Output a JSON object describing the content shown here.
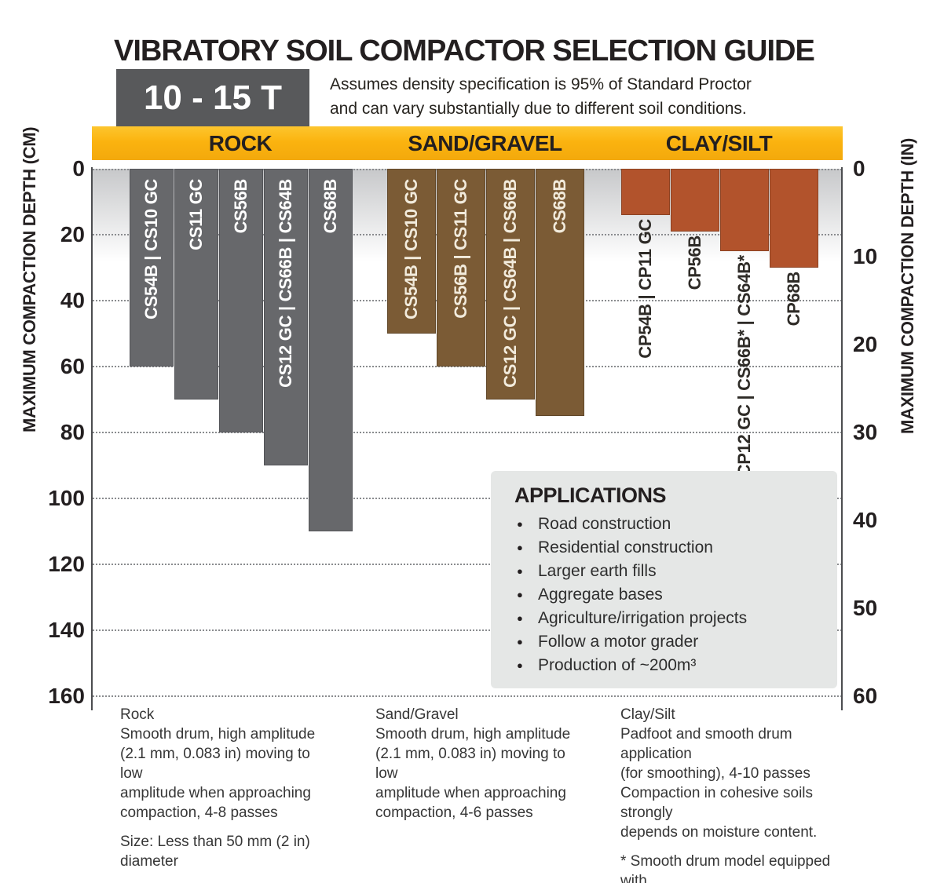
{
  "title": "VIBRATORY SOIL COMPACTOR SELECTION GUIDE",
  "badge": "10 - 15 T",
  "subtitle": {
    "line1": "Assumes density specification is 95% of Standard Proctor",
    "line2": "and can vary substantially due to different soil conditions."
  },
  "colors": {
    "band_yellow": "#FBB415",
    "badge_gray": "#58595B",
    "applications_box": "#E5E7E6",
    "gridline": "#8A8C8F",
    "axis_line": "#4C4D50",
    "plot_gradient_top": "#C7C8CA"
  },
  "axes": {
    "left_title": "MAXIMUM COMPACTION DEPTH (CM)",
    "right_title": "MAXIMUM COMPACTION DEPTH (IN)",
    "cm_ticks": [
      0,
      20,
      40,
      60,
      80,
      100,
      120,
      140,
      160
    ],
    "in_ticks": [
      0,
      10,
      20,
      30,
      40,
      50,
      60
    ],
    "cm_max": 160,
    "in_max": 60
  },
  "chart_data": {
    "type": "bar",
    "title": "VIBRATORY SOIL COMPACTOR SELECTION GUIDE",
    "orientation": "depth-bars-from-top",
    "ylabel_left": "MAXIMUM COMPACTION DEPTH (CM)",
    "ylabel_right": "MAXIMUM COMPACTION DEPTH (IN)",
    "ylim_cm": [
      0,
      160
    ],
    "ylim_in": [
      0,
      60
    ],
    "in_ticks_evenly_spaced_over_cm_range": true,
    "grid": "dotted horizontal every 20 cm",
    "groups": [
      {
        "category": "ROCK",
        "color": "#67686B",
        "edge_color": "#535458",
        "label_color": "#FFFFFF",
        "labels_outside": false,
        "bars": [
          {
            "model": "CS54B | CS10 GC",
            "depth_cm": 60
          },
          {
            "model": "CS11 GC",
            "depth_cm": 70
          },
          {
            "model": "CS56B",
            "depth_cm": 80
          },
          {
            "model": "CS12 GC  | CS66B | CS64B",
            "depth_cm": 90
          },
          {
            "model": "CS68B",
            "depth_cm": 110
          }
        ]
      },
      {
        "category": "SAND/GRAVEL",
        "color": "#7B5B35",
        "edge_color": "#61482A",
        "label_color": "#F2EBDC",
        "labels_outside": false,
        "bars": [
          {
            "model": "CS54B | CS10 GC",
            "depth_cm": 50
          },
          {
            "model": "CS56B | CS11 GC",
            "depth_cm": 60
          },
          {
            "model": "CS12 GC | CS64B | CS66B",
            "depth_cm": 70
          },
          {
            "model": "CS68B",
            "depth_cm": 75
          }
        ]
      },
      {
        "category": "CLAY/SILT",
        "color": "#B2532C",
        "edge_color": "#8C4222",
        "label_color": "#2E2B27",
        "labels_outside": true,
        "bars": [
          {
            "model": "CP54B | CP11 GC",
            "depth_cm": 14
          },
          {
            "model": "CP56B",
            "depth_cm": 19
          },
          {
            "model": "CP12 GC | CS66B* | CS64B*",
            "depth_cm": 25
          },
          {
            "model": "CP68B",
            "depth_cm": 30
          }
        ]
      }
    ]
  },
  "applications": {
    "title": "APPLICATIONS",
    "items": [
      "Road construction",
      "Residential construction",
      "Larger earth fills",
      "Aggregate bases",
      "Agriculture/irrigation projects",
      "Follow a motor grader",
      "Production of ~200m³"
    ]
  },
  "footnotes": [
    {
      "heading": "Rock",
      "paragraphs": [
        "Smooth drum, high amplitude\n(2.1 mm, 0.083 in) moving to low\namplitude when approaching\ncompaction, 4-8 passes",
        "Size: Less than 50 mm (2 in)\ndiameter"
      ]
    },
    {
      "heading": "Sand/Gravel",
      "paragraphs": [
        "Smooth drum, high amplitude\n(2.1 mm, 0.083 in) moving to low\namplitude when approaching\ncompaction, 4-6 passes"
      ]
    },
    {
      "heading": "Clay/Silt",
      "paragraphs": [
        "Padfoot and smooth drum application\n(for smoothing), 4-10 passes\nCompaction in cohesive soils strongly\ndepends on moisture content.",
        "* Smooth drum model equipped with\n  padfoot shell kit"
      ]
    }
  ]
}
